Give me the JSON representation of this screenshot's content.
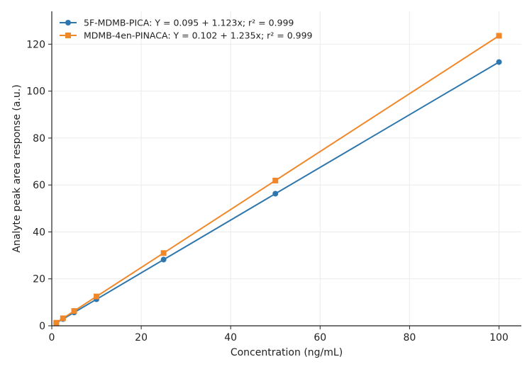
{
  "chart_data": {
    "type": "line",
    "xlabel": "Concentration (ng/mL)",
    "ylabel": "Analyte peak area response (a.u.)",
    "xlim": [
      0,
      105
    ],
    "ylim": [
      0,
      134
    ],
    "xticks": [
      0,
      20,
      40,
      60,
      80,
      100
    ],
    "yticks": [
      0,
      20,
      40,
      60,
      80,
      100,
      120
    ],
    "grid": true,
    "legend_position": "top-left",
    "series": [
      {
        "name": "5F-MDMB-PICA: Y = 0.095 + 1.123x; r² = 0.999",
        "color": "#2e77ad",
        "marker": "circle",
        "x": [
          1,
          2.5,
          5,
          10,
          25,
          50,
          100
        ],
        "y": [
          1.2,
          2.9,
          5.7,
          11.3,
          28.2,
          56.3,
          112.4
        ]
      },
      {
        "name": "MDMB-4en-PINACA: Y = 0.102 + 1.235x; r² = 0.999",
        "color": "#f0882a",
        "marker": "square",
        "x": [
          1,
          2.5,
          5,
          10,
          25,
          50,
          100
        ],
        "y": [
          1.3,
          3.2,
          6.3,
          12.5,
          31.0,
          61.9,
          123.6
        ]
      }
    ]
  }
}
